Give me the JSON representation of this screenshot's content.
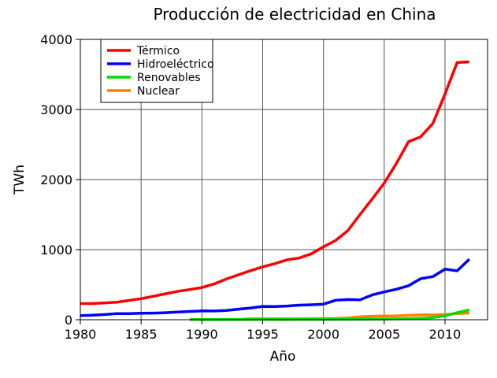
{
  "chart_data": {
    "type": "line",
    "title": "Producción de electricidad en China",
    "xlabel": "Año",
    "ylabel": "TWh",
    "xlim": [
      1980,
      2013.5
    ],
    "ylim": [
      0,
      4000
    ],
    "xticks": [
      1980,
      1985,
      1990,
      1995,
      2000,
      2005,
      2010
    ],
    "yticks": [
      0,
      1000,
      2000,
      3000,
      4000
    ],
    "grid": true,
    "legend": "top-left",
    "series": [
      {
        "name": "Térmico",
        "color": "#ff0000",
        "x": [
          1980,
          1981,
          1982,
          1983,
          1984,
          1985,
          1986,
          1987,
          1988,
          1989,
          1990,
          1991,
          1992,
          1993,
          1994,
          1995,
          1996,
          1997,
          1998,
          1999,
          2000,
          2001,
          2002,
          2003,
          2004,
          2005,
          2006,
          2007,
          2008,
          2009,
          2010,
          2011,
          2012
        ],
        "y": [
          230,
          230,
          240,
          250,
          275,
          300,
          335,
          370,
          405,
          430,
          460,
          510,
          580,
          640,
          700,
          755,
          800,
          855,
          880,
          940,
          1040,
          1130,
          1270,
          1500,
          1720,
          1950,
          2230,
          2540,
          2610,
          2800,
          3220,
          3670,
          3680
        ]
      },
      {
        "name": "Hidroeléctrico",
        "color": "#0000ff",
        "x": [
          1980,
          1981,
          1982,
          1983,
          1984,
          1985,
          1986,
          1987,
          1988,
          1989,
          1990,
          1991,
          1992,
          1993,
          1994,
          1995,
          1996,
          1997,
          1998,
          1999,
          2000,
          2001,
          2002,
          2003,
          2004,
          2005,
          2006,
          2007,
          2008,
          2009,
          2010,
          2011,
          2012
        ],
        "y": [
          58,
          65,
          74,
          86,
          86,
          92,
          94,
          100,
          109,
          118,
          126,
          125,
          131,
          151,
          167,
          190,
          188,
          196,
          208,
          213,
          222,
          277,
          288,
          284,
          353,
          397,
          435,
          485,
          585,
          616,
          722,
          698,
          864
        ]
      },
      {
        "name": "Renovables",
        "color": "#00dd00",
        "x": [
          1989,
          1990,
          1991,
          1992,
          1993,
          1994,
          1995,
          1996,
          1997,
          1998,
          1999,
          2000,
          2001,
          2002,
          2003,
          2004,
          2005,
          2006,
          2007,
          2008,
          2009,
          2010,
          2011,
          2012
        ],
        "y": [
          2,
          3,
          3,
          3,
          4,
          4,
          5,
          5,
          5,
          6,
          6,
          6,
          7,
          7,
          8,
          8,
          10,
          12,
          15,
          20,
          30,
          55,
          100,
          140
        ]
      },
      {
        "name": "Nuclear",
        "color": "#ff8000",
        "x": [
          1993,
          1994,
          1995,
          1996,
          1997,
          1998,
          1999,
          2000,
          2001,
          2002,
          2003,
          2004,
          2005,
          2006,
          2007,
          2008,
          2009,
          2010,
          2011,
          2012
        ],
        "y": [
          3,
          13,
          13,
          14,
          14,
          14,
          15,
          17,
          18,
          25,
          43,
          50,
          53,
          55,
          62,
          68,
          70,
          74,
          86,
          97
        ]
      }
    ]
  }
}
